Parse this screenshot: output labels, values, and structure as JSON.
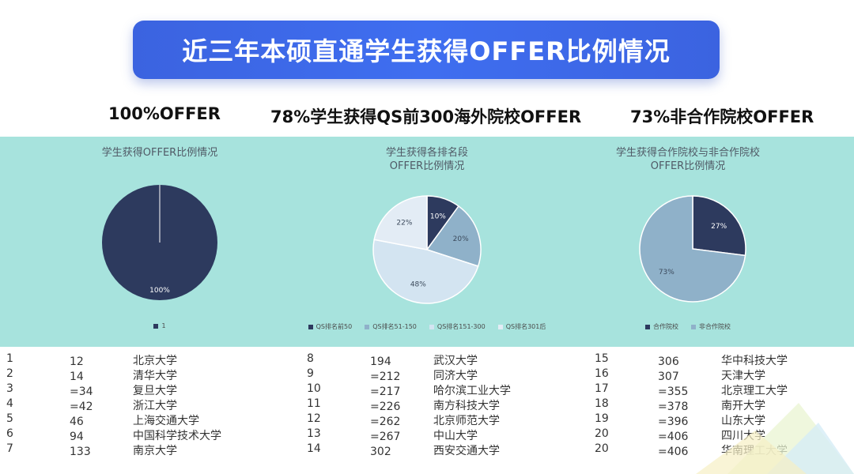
{
  "header": {
    "title": "近三年本硕直通学生获得OFFER比例情况"
  },
  "subheads": [
    "100%OFFER",
    "78%学生获得QS前300海外院校OFFER",
    "73%非合作院校OFFER"
  ],
  "chart_data": [
    {
      "type": "pie",
      "title": "学生获得OFFER比例情况",
      "slices": [
        {
          "label": "1",
          "value": 100,
          "color": "#2d3a5e",
          "display": "100%"
        }
      ],
      "legend_position": "bottom"
    },
    {
      "type": "pie",
      "title": "学生获得各排名段\nOFFER比例情况",
      "slices": [
        {
          "label": "QS排名前50",
          "value": 10,
          "color": "#2d3a5e",
          "display": "10%"
        },
        {
          "label": "QS排名51-150",
          "value": 20,
          "color": "#8fb1c9",
          "display": "20%"
        },
        {
          "label": "QS排名151-300",
          "value": 48,
          "color": "#d3e4f1",
          "display": "48%"
        },
        {
          "label": "QS排名301后",
          "value": 22,
          "color": "#e3ecf5",
          "display": "22%"
        }
      ],
      "legend_position": "bottom"
    },
    {
      "type": "pie",
      "title": "学生获得合作院校与非合作院校\nOFFER比例情况",
      "slices": [
        {
          "label": "合作院校",
          "value": 27,
          "color": "#2d3a5e",
          "display": "27%"
        },
        {
          "label": "非合作院校",
          "value": 73,
          "color": "#8fb1c9",
          "display": "73%"
        }
      ],
      "legend_position": "bottom"
    }
  ],
  "rank_tables": [
    {
      "rows": [
        [
          "1",
          "12",
          "北京大学"
        ],
        [
          "2",
          "14",
          "清华大学"
        ],
        [
          "3",
          "=34",
          "复旦大学"
        ],
        [
          "4",
          "=42",
          "浙江大学"
        ],
        [
          "5",
          "46",
          "上海交通大学"
        ],
        [
          "6",
          "94",
          "中国科学技术大学"
        ],
        [
          "7",
          "133",
          "南京大学"
        ]
      ]
    },
    {
      "rows": [
        [
          "8",
          "194",
          "武汉大学"
        ],
        [
          "9",
          "=212",
          "同济大学"
        ],
        [
          "10",
          "=217",
          "哈尔滨工业大学"
        ],
        [
          "11",
          "=226",
          "南方科技大学"
        ],
        [
          "12",
          "=262",
          "北京师范大学"
        ],
        [
          "13",
          "=267",
          "中山大学"
        ],
        [
          "14",
          "302",
          "西安交通大学"
        ]
      ]
    },
    {
      "rows": [
        [
          "15",
          "306",
          "华中科技大学"
        ],
        [
          "16",
          "307",
          "天津大学"
        ],
        [
          "17",
          "=355",
          "北京理工大学"
        ],
        [
          "18",
          "=378",
          "南开大学"
        ],
        [
          "19",
          "=396",
          "山东大学"
        ],
        [
          "20",
          "=406",
          "四川大学"
        ],
        [
          "20",
          "=406",
          "华南理工大学"
        ]
      ]
    }
  ],
  "colors": {
    "banner": "#3f6ef0",
    "band": "#a7e3dd"
  }
}
